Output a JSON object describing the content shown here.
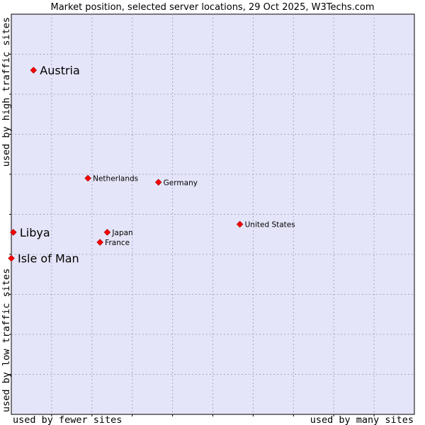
{
  "chart_data": {
    "type": "scatter",
    "title": "Market position, selected server locations, 29 Oct 2025, W3Techs.com",
    "xlabel_left": "used by fewer sites",
    "xlabel_right": "used by many sites",
    "ylabel_bottom": "used by low traffic sites",
    "ylabel_top": "used by high traffic sites",
    "xlim": [
      0,
      100
    ],
    "ylim": [
      0,
      100
    ],
    "grid": true,
    "colors": {
      "plot_background": "#e5e5f9",
      "point": "#ff0000",
      "grid": "#a6a6cc"
    },
    "points": [
      {
        "name": "Austria",
        "x": 5.5,
        "y": 86.0,
        "emphasis": true
      },
      {
        "name": "Netherlands",
        "x": 19.0,
        "y": 59.0,
        "emphasis": false
      },
      {
        "name": "Germany",
        "x": 36.5,
        "y": 58.0,
        "emphasis": false
      },
      {
        "name": "United States",
        "x": 56.7,
        "y": 47.5,
        "emphasis": false
      },
      {
        "name": "Libya",
        "x": 0.5,
        "y": 45.5,
        "emphasis": true
      },
      {
        "name": "Japan",
        "x": 23.8,
        "y": 45.5,
        "emphasis": false
      },
      {
        "name": "France",
        "x": 22.0,
        "y": 43.0,
        "emphasis": false
      },
      {
        "name": "Isle of Man",
        "x": 0.0,
        "y": 39.0,
        "emphasis": true
      }
    ]
  }
}
